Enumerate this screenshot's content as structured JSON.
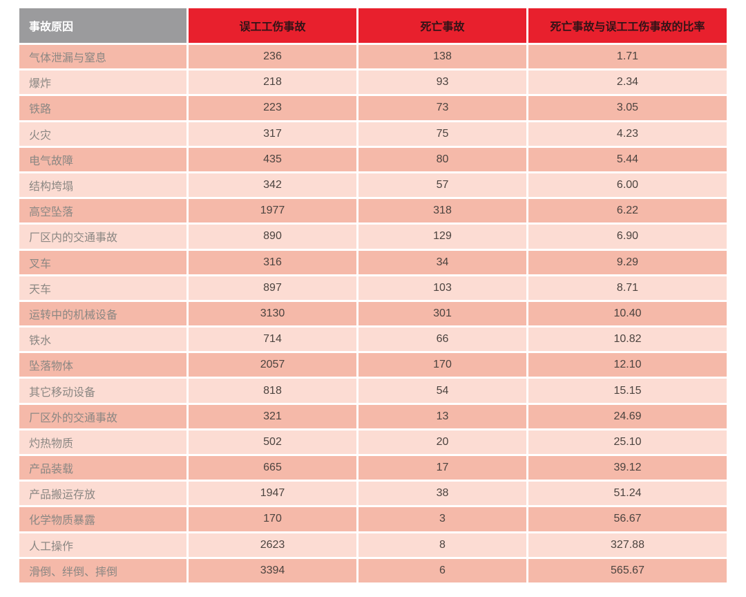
{
  "table": {
    "headers": [
      "事故原因",
      "误工工伤事故",
      "死亡事故",
      "死亡事故与误工工伤事故的比率"
    ],
    "rows": [
      {
        "cause": "气体泄漏与窒息",
        "lost_time": "236",
        "fatal": "138",
        "ratio": "1.71"
      },
      {
        "cause": "爆炸",
        "lost_time": "218",
        "fatal": "93",
        "ratio": "2.34"
      },
      {
        "cause": "铁路",
        "lost_time": "223",
        "fatal": "73",
        "ratio": "3.05"
      },
      {
        "cause": "火灾",
        "lost_time": "317",
        "fatal": "75",
        "ratio": "4.23"
      },
      {
        "cause": "电气故障",
        "lost_time": "435",
        "fatal": "80",
        "ratio": "5.44"
      },
      {
        "cause": "结构垮塌",
        "lost_time": "342",
        "fatal": "57",
        "ratio": "6.00"
      },
      {
        "cause": "高空坠落",
        "lost_time": "1977",
        "fatal": "318",
        "ratio": "6.22"
      },
      {
        "cause": "厂区内的交通事故",
        "lost_time": "890",
        "fatal": "129",
        "ratio": "6.90"
      },
      {
        "cause": "叉车",
        "lost_time": "316",
        "fatal": "34",
        "ratio": "9.29"
      },
      {
        "cause": "天车",
        "lost_time": "897",
        "fatal": "103",
        "ratio": "8.71"
      },
      {
        "cause": "运转中的机械设备",
        "lost_time": "3130",
        "fatal": "301",
        "ratio": "10.40"
      },
      {
        "cause": "铁水",
        "lost_time": "714",
        "fatal": "66",
        "ratio": "10.82"
      },
      {
        "cause": "坠落物体",
        "lost_time": "2057",
        "fatal": "170",
        "ratio": "12.10"
      },
      {
        "cause": "其它移动设备",
        "lost_time": "818",
        "fatal": "54",
        "ratio": "15.15"
      },
      {
        "cause": "厂区外的交通事故",
        "lost_time": "321",
        "fatal": "13",
        "ratio": "24.69"
      },
      {
        "cause": "灼热物质",
        "lost_time": "502",
        "fatal": "20",
        "ratio": "25.10"
      },
      {
        "cause": "产品装载",
        "lost_time": "665",
        "fatal": "17",
        "ratio": "39.12"
      },
      {
        "cause": "产品搬运存放",
        "lost_time": "1947",
        "fatal": "38",
        "ratio": "51.24"
      },
      {
        "cause": "化学物质暴露",
        "lost_time": "170",
        "fatal": "3",
        "ratio": "56.67"
      },
      {
        "cause": "人工操作",
        "lost_time": "2623",
        "fatal": "8",
        "ratio": "327.88"
      },
      {
        "cause": "滑倒、绊倒、摔倒",
        "lost_time": "3394",
        "fatal": "6",
        "ratio": "565.67"
      }
    ]
  },
  "colors": {
    "header_gray_bg": "#9b9b9d",
    "header_red_bg": "#e8202d",
    "header_gray_text": "#ffffff",
    "header_red_text": "#311317",
    "row_dark_bg": "#f5b9a9",
    "row_light_bg": "#fcdcd3",
    "cause_text": "#8b8783",
    "number_text": "#4b433f",
    "page_bg": "#ffffff"
  },
  "chart_data": {
    "type": "table",
    "title": "",
    "columns": [
      "事故原因",
      "误工工伤事故",
      "死亡事故",
      "死亡事故与误工工伤事故的比率"
    ],
    "rows": [
      [
        "气体泄漏与窒息",
        236,
        138,
        1.71
      ],
      [
        "爆炸",
        218,
        93,
        2.34
      ],
      [
        "铁路",
        223,
        73,
        3.05
      ],
      [
        "火灾",
        317,
        75,
        4.23
      ],
      [
        "电气故障",
        435,
        80,
        5.44
      ],
      [
        "结构垮塌",
        342,
        57,
        6.0
      ],
      [
        "高空坠落",
        1977,
        318,
        6.22
      ],
      [
        "厂区内的交通事故",
        890,
        129,
        6.9
      ],
      [
        "叉车",
        316,
        34,
        9.29
      ],
      [
        "天车",
        897,
        103,
        8.71
      ],
      [
        "运转中的机械设备",
        3130,
        301,
        10.4
      ],
      [
        "铁水",
        714,
        66,
        10.82
      ],
      [
        "坠落物体",
        2057,
        170,
        12.1
      ],
      [
        "其它移动设备",
        818,
        54,
        15.15
      ],
      [
        "厂区外的交通事故",
        321,
        13,
        24.69
      ],
      [
        "灼热物质",
        502,
        20,
        25.1
      ],
      [
        "产品装载",
        665,
        17,
        39.12
      ],
      [
        "产品搬运存放",
        1947,
        38,
        51.24
      ],
      [
        "化学物质暴露",
        170,
        3,
        56.67
      ],
      [
        "人工操作",
        2623,
        8,
        327.88
      ],
      [
        "滑倒、绊倒、摔倒",
        3394,
        6,
        565.67
      ]
    ]
  }
}
